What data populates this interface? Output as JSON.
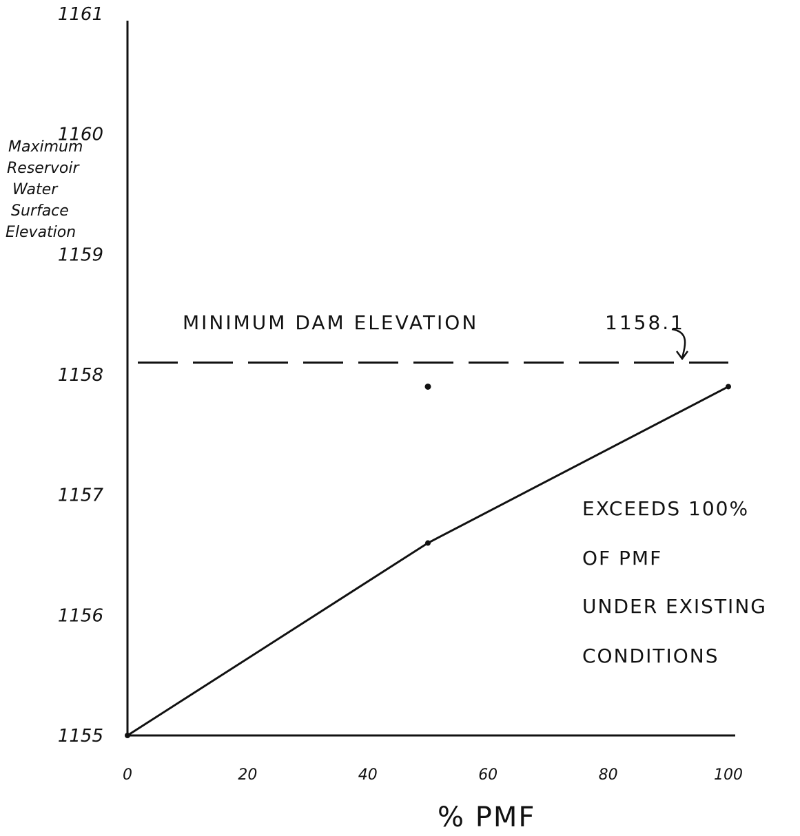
{
  "chart_data": {
    "type": "line",
    "title": "",
    "xlabel": "% PMF",
    "ylabel": [
      "Maximum",
      "Reservoir",
      "Water",
      "Surface",
      "Elevation"
    ],
    "xlim": [
      0,
      100
    ],
    "ylim": [
      1155,
      1161
    ],
    "x_ticks": [
      "0",
      "20",
      "40",
      "60",
      "80",
      "100"
    ],
    "y_ticks": [
      "1155",
      "1156",
      "1157",
      "1158",
      "1159",
      "1160",
      "1161"
    ],
    "grid": false,
    "series": [
      {
        "x": [
          0,
          50,
          100
        ],
        "y": [
          1155.0,
          1156.6,
          1157.9
        ]
      }
    ],
    "extra_points": [
      {
        "x": 50,
        "y": 1157.9
      }
    ],
    "reference_line": {
      "y": 1158.1,
      "style": "dashed",
      "label": "MINIMUM DAM ELEVATION",
      "value_label": "1158.1"
    },
    "annotation": [
      "EXCEEDS 100%",
      "OF PMF",
      "UNDER EXISTING",
      "CONDITIONS"
    ]
  }
}
